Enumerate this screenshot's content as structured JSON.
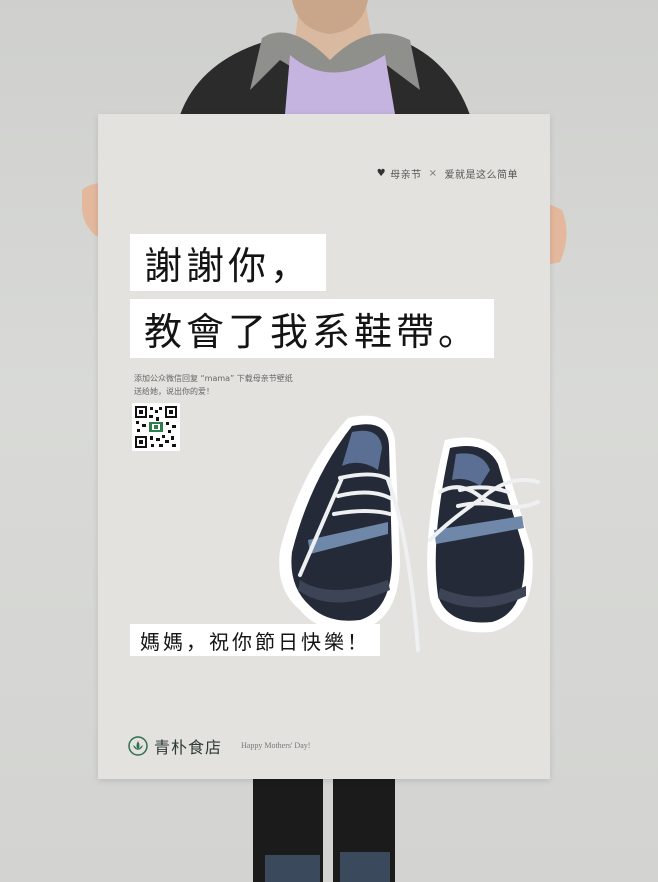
{
  "poster": {
    "tagline": {
      "icon": "heart-icon",
      "part1": "母亲节",
      "separator": "×",
      "part2": "爱就是这么简单"
    },
    "headline_line1": "謝謝你，",
    "headline_line2": "教會了我系鞋帶。",
    "note_line1": "添加公众微信回复 “mama” 下载母亲节壁纸",
    "note_line2": "送给她，说出你的爱！",
    "greeting": "媽媽，祝你節日快樂！",
    "brand": {
      "name": "青朴食店",
      "tagline": "Happy Mothers' Day!"
    }
  }
}
